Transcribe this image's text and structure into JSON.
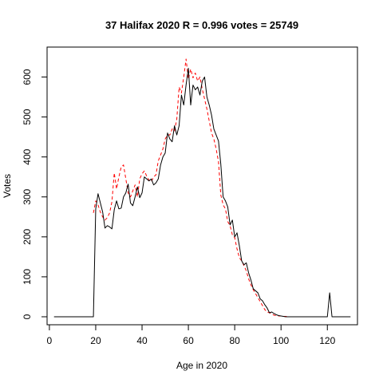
{
  "chart_data": {
    "type": "line",
    "title": "37 Halifax 2020 R = 0.996 votes = 25749",
    "xlabel": "Age in 2020",
    "ylabel": "Votes",
    "xlim": [
      -1,
      133
    ],
    "ylim": [
      -20,
      675
    ],
    "xticks": [
      0,
      20,
      40,
      60,
      80,
      100,
      120
    ],
    "yticks": [
      0,
      100,
      200,
      300,
      400,
      500,
      600
    ],
    "grid": false,
    "series": [
      {
        "color": "#000000",
        "style": "solid",
        "x": [
          2,
          3,
          4,
          5,
          6,
          7,
          8,
          9,
          10,
          11,
          12,
          13,
          14,
          15,
          16,
          17,
          18,
          19,
          20,
          21,
          22,
          23,
          24,
          25,
          26,
          27,
          28,
          29,
          30,
          31,
          32,
          33,
          34,
          35,
          36,
          37,
          38,
          39,
          40,
          41,
          42,
          43,
          44,
          45,
          46,
          47,
          48,
          49,
          50,
          51,
          52,
          53,
          54,
          55,
          56,
          57,
          58,
          59,
          60,
          61,
          62,
          63,
          64,
          65,
          66,
          67,
          68,
          69,
          70,
          71,
          72,
          73,
          74,
          75,
          76,
          77,
          78,
          79,
          80,
          81,
          82,
          83,
          84,
          85,
          86,
          87,
          88,
          89,
          90,
          91,
          92,
          93,
          94,
          95,
          96,
          97,
          98,
          99,
          100,
          101,
          102,
          103,
          104,
          105,
          106,
          107,
          108,
          109,
          110,
          111,
          112,
          113,
          114,
          115,
          116,
          117,
          118,
          119,
          120,
          121,
          122,
          123,
          124,
          125,
          126,
          127,
          128,
          129,
          130
        ],
        "values": [
          0,
          0,
          0,
          0,
          0,
          0,
          0,
          0,
          0,
          0,
          0,
          0,
          0,
          0,
          0,
          0,
          0,
          0,
          270,
          308,
          285,
          262,
          222,
          228,
          225,
          220,
          268,
          290,
          270,
          272,
          300,
          310,
          332,
          285,
          278,
          300,
          325,
          298,
          310,
          350,
          345,
          340,
          345,
          330,
          335,
          345,
          380,
          400,
          410,
          460,
          445,
          438,
          478,
          455,
          478,
          555,
          530,
          580,
          622,
          530,
          580,
          568,
          575,
          555,
          590,
          600,
          550,
          530,
          505,
          470,
          455,
          440,
          382,
          300,
          290,
          275,
          230,
          242,
          200,
          210,
          178,
          140,
          130,
          135,
          110,
          92,
          70,
          65,
          60,
          45,
          40,
          30,
          22,
          10,
          12,
          8,
          5,
          3,
          2,
          1,
          0,
          0,
          0,
          0,
          0,
          0,
          0,
          0,
          0,
          0,
          0,
          0,
          0,
          0,
          0,
          0,
          0,
          0,
          0,
          60,
          0,
          0,
          0,
          0,
          0,
          0,
          0,
          0,
          0
        ]
      },
      {
        "color": "#ff0000",
        "style": "dashed",
        "x": [
          19,
          20,
          21,
          22,
          23,
          24,
          25,
          26,
          27,
          28,
          29,
          30,
          31,
          32,
          33,
          34,
          35,
          36,
          37,
          38,
          39,
          40,
          41,
          42,
          43,
          44,
          45,
          46,
          47,
          48,
          49,
          50,
          51,
          52,
          53,
          54,
          55,
          56,
          57,
          58,
          59,
          60,
          61,
          62,
          63,
          64,
          65,
          66,
          67,
          68,
          69,
          70,
          71,
          72,
          73,
          74,
          75,
          76,
          77,
          78,
          79,
          80,
          81,
          82,
          83,
          84,
          85,
          86,
          87,
          88,
          89,
          90,
          91,
          92,
          93,
          94,
          95,
          96,
          97,
          98,
          99,
          100,
          101,
          102,
          103,
          104,
          105
        ],
        "values": [
          260,
          290,
          280,
          262,
          250,
          242,
          248,
          260,
          288,
          360,
          320,
          350,
          375,
          380,
          345,
          310,
          300,
          315,
          330,
          300,
          345,
          358,
          365,
          352,
          342,
          338,
          350,
          355,
          390,
          405,
          420,
          445,
          455,
          455,
          470,
          465,
          495,
          575,
          560,
          600,
          645,
          595,
          620,
          598,
          610,
          590,
          600,
          570,
          545,
          520,
          490,
          460,
          445,
          420,
          388,
          305,
          280,
          270,
          238,
          228,
          205,
          198,
          170,
          148,
          140,
          128,
          115,
          95,
          80,
          68,
          58,
          48,
          38,
          28,
          18,
          12,
          10,
          7,
          4,
          3,
          2,
          2,
          1,
          1,
          0,
          0,
          0
        ]
      }
    ]
  }
}
